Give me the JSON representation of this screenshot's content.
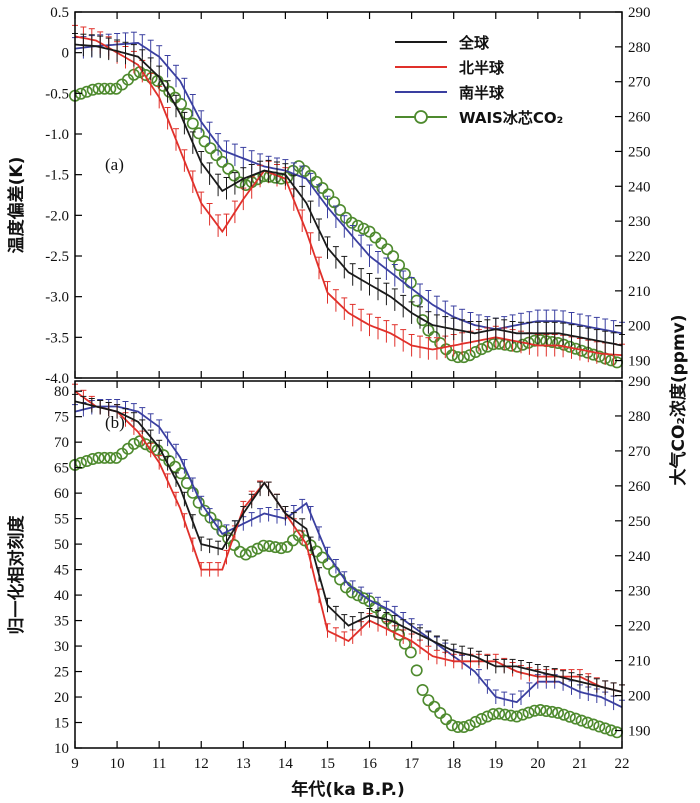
{
  "chart_data": {
    "type": "line",
    "xlabel": "年代(ka B.P.)",
    "xlim": [
      9,
      22
    ],
    "xticks": [
      9,
      10,
      11,
      12,
      13,
      14,
      15,
      16,
      17,
      18,
      19,
      20,
      21,
      22
    ],
    "x_tick_labels": [
      "9",
      "10",
      "11",
      "12",
      "13",
      "14",
      "15",
      "16",
      "17",
      "18",
      "19",
      "20",
      "21",
      "22"
    ],
    "right_ylabel": "大气CO₂浓度(ppmv)",
    "right_ylim": [
      185,
      290
    ],
    "right_ticks": [
      190,
      200,
      210,
      220,
      230,
      240,
      250,
      260,
      270,
      280,
      290
    ],
    "right_tick_labels": [
      "190",
      "200",
      "210",
      "220",
      "230",
      "240",
      "250",
      "260",
      "270",
      "280",
      "290"
    ],
    "legend": [
      {
        "name": "全球",
        "color": "#1a1a1a"
      },
      {
        "name": "北半球",
        "color": "#e0302a"
      },
      {
        "name": "南半球",
        "color": "#3a3fa0"
      },
      {
        "name": "WAIS冰芯CO₂",
        "color": "#4e8a2e"
      }
    ],
    "co2": {
      "x": [
        9.0,
        9.5,
        10.0,
        10.5,
        11.0,
        11.5,
        12.0,
        12.5,
        13.0,
        13.5,
        14.0,
        14.3,
        14.6,
        15.0,
        15.5,
        16.0,
        16.5,
        17.0,
        17.3,
        17.6,
        18.0,
        18.3,
        18.6,
        19.0,
        19.5,
        20.0,
        20.5,
        21.0,
        21.5,
        22.0
      ],
      "values": [
        266,
        268,
        268,
        273,
        270,
        264,
        254,
        247,
        240,
        243,
        242,
        246,
        243,
        238,
        230,
        227,
        221,
        212,
        200,
        196,
        191,
        191,
        193,
        195,
        194,
        196,
        195,
        193,
        191,
        189
      ]
    },
    "panels": [
      {
        "label": "(a)",
        "ylabel": "温度偏差(K)",
        "ylim": [
          -4.0,
          0.5
        ],
        "yticks": [
          -4.0,
          -3.5,
          -3.0,
          -2.5,
          -2.0,
          -1.5,
          -1.0,
          -0.5,
          0,
          0.5
        ],
        "y_tick_labels": [
          "-4.0",
          "-3.5",
          "-3.0",
          "-2.5",
          "-2.0",
          "-1.5",
          "-1.0",
          "-0.5",
          "0",
          "0.5"
        ],
        "x": [
          9.0,
          9.5,
          10.0,
          10.5,
          11.0,
          11.5,
          12.0,
          12.5,
          13.0,
          13.5,
          14.0,
          14.5,
          15.0,
          15.5,
          16.0,
          16.5,
          17.0,
          17.5,
          18.0,
          18.5,
          19.0,
          19.5,
          20.0,
          20.5,
          21.0,
          21.5,
          22.0
        ],
        "series": [
          {
            "name": "全球",
            "values": [
              0.1,
              0.08,
              0.02,
              -0.05,
              -0.3,
              -0.75,
              -1.35,
              -1.7,
              -1.55,
              -1.45,
              -1.5,
              -1.85,
              -2.4,
              -2.7,
              -2.85,
              -3.0,
              -3.2,
              -3.35,
              -3.4,
              -3.45,
              -3.4,
              -3.45,
              -3.45,
              -3.45,
              -3.5,
              -3.55,
              -3.6
            ]
          },
          {
            "name": "北半球",
            "values": [
              0.2,
              0.15,
              0.0,
              -0.15,
              -0.55,
              -1.2,
              -1.85,
              -2.2,
              -1.8,
              -1.45,
              -1.55,
              -2.2,
              -2.95,
              -3.2,
              -3.35,
              -3.45,
              -3.6,
              -3.65,
              -3.6,
              -3.55,
              -3.5,
              -3.55,
              -3.6,
              -3.6,
              -3.65,
              -3.7,
              -3.72
            ]
          },
          {
            "name": "南半球",
            "values": [
              0.05,
              0.08,
              0.1,
              0.12,
              -0.05,
              -0.35,
              -0.85,
              -1.2,
              -1.3,
              -1.4,
              -1.45,
              -1.55,
              -1.9,
              -2.2,
              -2.5,
              -2.7,
              -2.9,
              -3.1,
              -3.25,
              -3.35,
              -3.4,
              -3.35,
              -3.3,
              -3.3,
              -3.35,
              -3.4,
              -3.45
            ]
          }
        ]
      },
      {
        "label": "(b)",
        "ylabel": "归一化相对刻度",
        "ylim": [
          10,
          82
        ],
        "yticks": [
          10,
          15,
          20,
          25,
          30,
          35,
          40,
          45,
          50,
          55,
          60,
          65,
          70,
          75,
          80
        ],
        "y_tick_labels": [
          "10",
          "15",
          "20",
          "25",
          "30",
          "35",
          "40",
          "45",
          "50",
          "55",
          "60",
          "65",
          "70",
          "75",
          "80"
        ],
        "x": [
          9.0,
          9.5,
          10.0,
          10.5,
          11.0,
          11.5,
          12.0,
          12.5,
          13.0,
          13.5,
          14.0,
          14.5,
          15.0,
          15.5,
          16.0,
          16.5,
          17.0,
          17.5,
          18.0,
          18.5,
          19.0,
          19.5,
          20.0,
          20.5,
          21.0,
          21.5,
          22.0
        ],
        "series": [
          {
            "name": "全球",
            "values": [
              78,
              77,
              76,
              74,
              69,
              61,
              50,
              49,
              56,
              62,
              56,
              53,
              38,
              34,
              36,
              35,
              33,
              31,
              29,
              28,
              26,
              26,
              25,
              24,
              23,
              22,
              21
            ]
          },
          {
            "name": "北半球",
            "values": [
              80,
              77,
              76,
              72,
              66,
              57,
              45,
              45,
              57,
              62,
              56,
              50,
              33,
              31,
              35,
              33,
              31,
              28,
              27,
              27,
              27,
              25,
              24,
              24,
              24,
              22,
              21
            ]
          },
          {
            "name": "南半球",
            "values": [
              76,
              77,
              77,
              76,
              73,
              67,
              58,
              52,
              54,
              56,
              55,
              58,
              48,
              42,
              39,
              37,
              34,
              31,
              28,
              25,
              20,
              19,
              23,
              23,
              21,
              20,
              18
            ]
          }
        ]
      }
    ]
  }
}
